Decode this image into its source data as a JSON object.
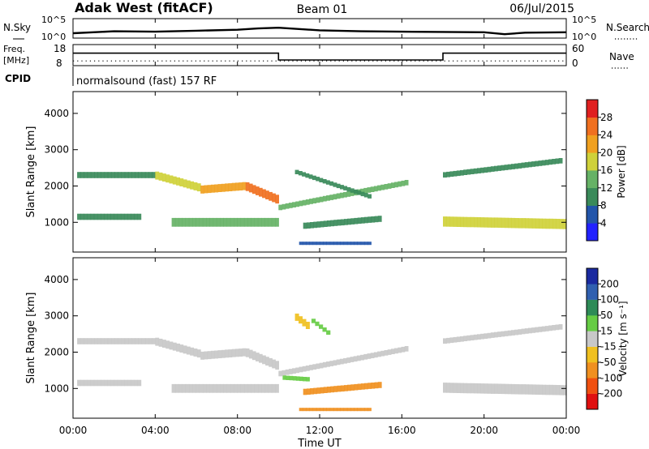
{
  "header": {
    "station": "Adak West (fitACF)",
    "beam": "Beam 01",
    "date": "06/Jul/2015"
  },
  "top_panels": {
    "nsky_label": "N.Sky",
    "nsky_ticks": [
      "10^5",
      "10^0"
    ],
    "nsearch_label": "N.Search",
    "nsearch_ticks": [
      "10^5",
      "10^0"
    ],
    "freq_label_1": "Freq.",
    "freq_label_2": "[MHz]",
    "freq_ticks": [
      "18",
      "8"
    ],
    "nave_label": "Nave",
    "nave_ticks": [
      "60",
      "0"
    ],
    "cpid_label": "CPID",
    "cpid_text": "normalsound (fast) 157 RF"
  },
  "axes": {
    "ylabel": "Slant Range [km]",
    "xlabel": "Time UT",
    "xticks": [
      "00:00",
      "04:00",
      "08:00",
      "12:00",
      "16:00",
      "20:00",
      "00:00"
    ],
    "yticks": [
      "1000",
      "2000",
      "3000",
      "4000"
    ]
  },
  "colorbars": {
    "power": {
      "label": "Power [dB]",
      "ticks": [
        "4",
        "8",
        "12",
        "16",
        "20",
        "24",
        "28"
      ],
      "colors": [
        "#2222ff",
        "#2255aa",
        "#3a8a5a",
        "#66b266",
        "#cfd13a",
        "#f0a020",
        "#f07020",
        "#e02020"
      ]
    },
    "velocity": {
      "label": "Velocity [m s⁻¹]",
      "ticks": [
        "200",
        "100",
        "50",
        "15",
        "-15",
        "-50",
        "-100",
        "-200"
      ],
      "colors": [
        "#1a2aa0",
        "#3060b0",
        "#2e8b57",
        "#66cc44",
        "#c8c8c8",
        "#f0c020",
        "#f09020",
        "#f05010",
        "#e01010"
      ]
    }
  },
  "chart_data": [
    {
      "type": "line",
      "title": "N.Sky / N.Search",
      "x": [
        0,
        2,
        4,
        6,
        8,
        9,
        10,
        12,
        14,
        16,
        18,
        20,
        21,
        22,
        24
      ],
      "series": [
        {
          "name": "N.Sky",
          "values": [
            10,
            40,
            30,
            60,
            120,
            300,
            500,
            80,
            40,
            30,
            25,
            20,
            5,
            15,
            20
          ]
        }
      ],
      "ylim": [
        1,
        100000
      ],
      "yscale": "log"
    },
    {
      "type": "line",
      "title": "Freq. / Nave",
      "x": [
        0,
        10,
        10,
        18,
        18,
        24
      ],
      "series": [
        {
          "name": "Freq.",
          "values": [
            14,
            14,
            10.5,
            10.5,
            14,
            14
          ]
        },
        {
          "name": "Nave",
          "values": [
            12,
            12,
            12,
            12,
            12,
            12
          ]
        }
      ],
      "ylim": [
        8,
        18
      ]
    },
    {
      "type": "heatmap",
      "title": "Power [dB]",
      "xlabel": "Time UT",
      "ylabel": "Slant Range [km]",
      "xlim": [
        0,
        24
      ],
      "ylim": [
        180,
        4600
      ],
      "blobs": [
        {
          "x0": 0.2,
          "x1": 4.0,
          "r0": 2300,
          "r1": 2300,
          "w": 170,
          "v": 11
        },
        {
          "x0": 4.0,
          "x1": 6.2,
          "r0": 2300,
          "r1": 1950,
          "w": 220,
          "v": 18
        },
        {
          "x0": 6.2,
          "x1": 8.4,
          "r0": 1900,
          "r1": 2000,
          "w": 220,
          "v": 22
        },
        {
          "x0": 8.4,
          "x1": 10.0,
          "r0": 2000,
          "r1": 1620,
          "w": 240,
          "v": 25
        },
        {
          "x0": 0.2,
          "x1": 3.3,
          "r0": 1150,
          "r1": 1150,
          "w": 170,
          "v": 10
        },
        {
          "x0": 4.8,
          "x1": 10.0,
          "r0": 1000,
          "r1": 1000,
          "w": 240,
          "v": 14
        },
        {
          "x0": 10.0,
          "x1": 16.3,
          "r0": 1400,
          "r1": 2100,
          "w": 150,
          "v": 12
        },
        {
          "x0": 10.8,
          "x1": 14.5,
          "r0": 2400,
          "r1": 1700,
          "w": 120,
          "v": 9
        },
        {
          "x0": 11.2,
          "x1": 15.0,
          "r0": 900,
          "r1": 1100,
          "w": 170,
          "v": 9
        },
        {
          "x0": 11.0,
          "x1": 14.5,
          "r0": 420,
          "r1": 420,
          "w": 90,
          "v": 7
        },
        {
          "x0": 18.0,
          "x1": 24.0,
          "r0": 1020,
          "r1": 950,
          "w": 280,
          "v": 17
        },
        {
          "x0": 18.0,
          "x1": 23.8,
          "r0": 2300,
          "r1": 2700,
          "w": 150,
          "v": 10
        }
      ]
    },
    {
      "type": "heatmap",
      "title": "Velocity [m s⁻¹]",
      "xlabel": "Time UT",
      "ylabel": "Slant Range [km]",
      "xlim": [
        0,
        24
      ],
      "ylim": [
        180,
        4600
      ],
      "blobs": [
        {
          "x0": 0.2,
          "x1": 4.0,
          "r0": 2300,
          "r1": 2300,
          "w": 170,
          "v": 0
        },
        {
          "x0": 4.0,
          "x1": 6.2,
          "r0": 2300,
          "r1": 1950,
          "w": 220,
          "v": 0
        },
        {
          "x0": 6.2,
          "x1": 8.4,
          "r0": 1900,
          "r1": 2000,
          "w": 220,
          "v": 0
        },
        {
          "x0": 8.4,
          "x1": 10.0,
          "r0": 2000,
          "r1": 1620,
          "w": 240,
          "v": 0
        },
        {
          "x0": 0.2,
          "x1": 3.3,
          "r0": 1150,
          "r1": 1150,
          "w": 170,
          "v": 0
        },
        {
          "x0": 4.8,
          "x1": 10.0,
          "r0": 1000,
          "r1": 1000,
          "w": 240,
          "v": 0
        },
        {
          "x0": 10.0,
          "x1": 16.3,
          "r0": 1400,
          "r1": 2100,
          "w": 150,
          "v": 0
        },
        {
          "x0": 10.2,
          "x1": 11.5,
          "r0": 1300,
          "r1": 1250,
          "w": 120,
          "v": 30
        },
        {
          "x0": 10.8,
          "x1": 11.5,
          "r0": 3000,
          "r1": 2700,
          "w": 200,
          "v": -40
        },
        {
          "x0": 11.6,
          "x1": 12.5,
          "r0": 2900,
          "r1": 2500,
          "w": 120,
          "v": 40
        },
        {
          "x0": 11.2,
          "x1": 15.0,
          "r0": 900,
          "r1": 1100,
          "w": 170,
          "v": -60
        },
        {
          "x0": 11.0,
          "x1": 14.5,
          "r0": 420,
          "r1": 420,
          "w": 90,
          "v": -70
        },
        {
          "x0": 18.0,
          "x1": 24.0,
          "r0": 1020,
          "r1": 950,
          "w": 280,
          "v": 0
        },
        {
          "x0": 18.0,
          "x1": 23.8,
          "r0": 2300,
          "r1": 2700,
          "w": 150,
          "v": 0
        }
      ]
    }
  ]
}
